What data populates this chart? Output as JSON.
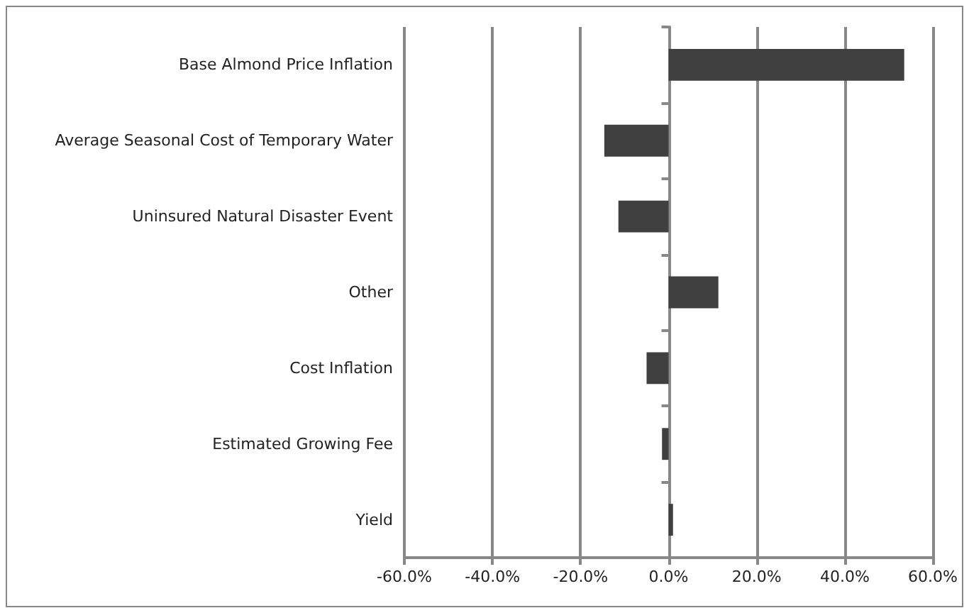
{
  "chart_data": {
    "type": "bar",
    "orientation": "horizontal",
    "categories": [
      "Base Almond Price Inflation",
      "Average Seasonal Cost of Temporary Water",
      "Uninsured Natural Disaster Event",
      "Other",
      "Cost Inflation",
      "Estimated Growing Fee",
      "Yield"
    ],
    "values": [
      53.5,
      -14.6,
      -11.4,
      11.3,
      -5.0,
      -1.5,
      1.0
    ],
    "color": "#404040",
    "xlim": [
      -60,
      60
    ],
    "xticks": [
      {
        "value": -60,
        "label": "-60.0%"
      },
      {
        "value": -40,
        "label": "-40.0%"
      },
      {
        "value": -20,
        "label": "-20.0%"
      },
      {
        "value": 0,
        "label": "0.0%"
      },
      {
        "value": 20,
        "label": "20.0%"
      },
      {
        "value": 40,
        "label": "40.0%"
      },
      {
        "value": 60,
        "label": "60.0%"
      }
    ],
    "grid": "x"
  }
}
